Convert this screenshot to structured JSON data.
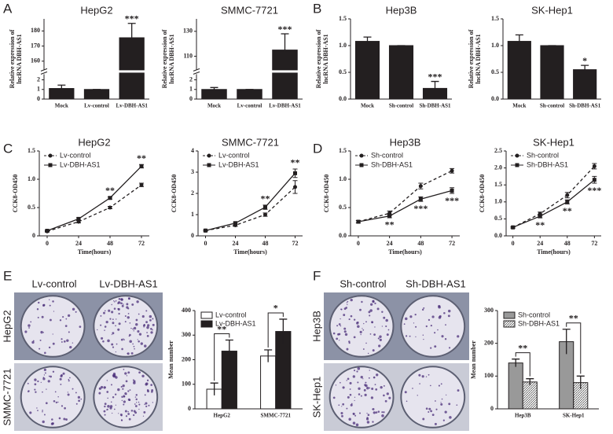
{
  "panel_labels": [
    "A",
    "B",
    "C",
    "D",
    "E",
    "F"
  ],
  "photos": [
    {
      "columns": [
        "Lv-control",
        "Lv-DBH-AS1"
      ],
      "rows": [
        "HepG2",
        "SMMC-7721"
      ]
    },
    {
      "columns": [
        "Sh-control",
        "Sh-DBH-AS1"
      ],
      "rows": [
        "Hep3B",
        "SK-Hep1"
      ]
    }
  ],
  "chart_data": [
    {
      "type": "bar",
      "title": "HepG2",
      "ylabel": [
        "Relative expression of",
        "lncRNA DBH-AS1"
      ],
      "categories": [
        "Mock",
        "Lv-control",
        "Lv-DBH-AS1"
      ],
      "values": [
        1.1,
        1,
        175.5
      ],
      "errors": [
        0.35,
        0,
        9.5
      ],
      "annotations": [
        null,
        null,
        "***"
      ],
      "color": "#231f20",
      "ylim": [
        0,
        188
      ],
      "axis_break": [
        2.5,
        155
      ],
      "yticks": [
        0,
        1,
        2,
        160,
        170,
        180
      ]
    },
    {
      "type": "bar",
      "title": "SMMC-7721",
      "ylabel": [
        "Relative expression of",
        "lncRNA DBH-AS1"
      ],
      "categories": [
        "Mock",
        "Lv-control",
        "Lv-DBH-AS1"
      ],
      "values": [
        1,
        1,
        115
      ],
      "errors": [
        0.2,
        0,
        13
      ],
      "annotations": [
        null,
        null,
        "***"
      ],
      "color": "#231f20",
      "ylim": [
        0,
        140
      ],
      "axis_break": [
        2.5,
        100
      ],
      "yticks": [
        0,
        1,
        2,
        110,
        130
      ]
    },
    {
      "type": "bar",
      "title": "Hep3B",
      "ylabel": [
        "Relative expression of",
        "lncRNA DBH-AS1"
      ],
      "categories": [
        "Mock",
        "Sh-control",
        "Sh-DBH-AS1"
      ],
      "values": [
        1.08,
        1,
        0.2
      ],
      "errors": [
        0.08,
        0,
        0.13
      ],
      "annotations": [
        null,
        null,
        "***"
      ],
      "color": "#231f20",
      "ylim": [
        0,
        1.5
      ],
      "yticks": [
        {
          "value": 0,
          "label": "0.0"
        },
        0.5,
        {
          "value": 1,
          "label": "1.0"
        },
        1.5
      ]
    },
    {
      "type": "bar",
      "title": "SK-Hep1",
      "ylabel": [
        "Relative expression of",
        "lncRNA DBH-AS1"
      ],
      "categories": [
        "Mock",
        "Sh-control",
        "Sh-DBH-AS1"
      ],
      "values": [
        1.08,
        1,
        0.55
      ],
      "errors": [
        0.12,
        0,
        0.08
      ],
      "annotations": [
        null,
        null,
        "*"
      ],
      "color": "#231f20",
      "ylim": [
        0,
        1.5
      ],
      "yticks": [
        {
          "value": 0,
          "label": "0.0"
        },
        0.5,
        {
          "value": 1,
          "label": "1.0"
        },
        1.5
      ]
    },
    {
      "type": "line",
      "title": "HepG2",
      "xlabel": "Time(hours)",
      "ylabel": "CCK8-OD450",
      "x": [
        0,
        24,
        48,
        72
      ],
      "xlim": [
        -6,
        78
      ],
      "xticks": [
        0,
        24,
        48,
        72
      ],
      "ylim": [
        0,
        1.5
      ],
      "yticks": [
        0,
        0.5,
        {
          "value": 1,
          "label": "1.0"
        },
        1.5
      ],
      "annotations": [
        null,
        null,
        "**",
        "**"
      ],
      "annotation_position": "above",
      "series": [
        {
          "name": "Lv-control",
          "color": "#231f20",
          "dash": true,
          "marker": "circle",
          "values": [
            0.08,
            0.25,
            0.5,
            0.9
          ],
          "errors": [
            0.01,
            0.02,
            0.02,
            0.03
          ]
        },
        {
          "name": "Lv-DBH-AS1",
          "color": "#231f20",
          "dash": false,
          "marker": "square",
          "values": [
            0.09,
            0.3,
            0.67,
            1.23
          ],
          "errors": [
            0.01,
            0.02,
            0.02,
            0.03
          ]
        }
      ]
    },
    {
      "type": "line",
      "title": "SMMC-7721",
      "xlabel": "Time(hours)",
      "ylabel": "CCK8-OD450",
      "x": [
        0,
        24,
        48,
        72
      ],
      "xlim": [
        -6,
        78
      ],
      "xticks": [
        0,
        24,
        48,
        72
      ],
      "ylim": [
        0,
        4
      ],
      "yticks": [
        0,
        1,
        2,
        3,
        4
      ],
      "annotations": [
        null,
        null,
        "**",
        "**"
      ],
      "annotation_position": "above",
      "series": [
        {
          "name": "Lv-control",
          "color": "#231f20",
          "dash": true,
          "marker": "circle",
          "values": [
            0.25,
            0.5,
            1,
            2.3
          ],
          "errors": [
            0.03,
            0.05,
            0.08,
            0.3
          ]
        },
        {
          "name": "Lv-DBH-AS1",
          "color": "#231f20",
          "dash": false,
          "marker": "square",
          "values": [
            0.25,
            0.6,
            1.35,
            2.95
          ],
          "errors": [
            0.03,
            0.05,
            0.1,
            0.2
          ]
        }
      ]
    },
    {
      "type": "line",
      "title": "Hep3B",
      "xlabel": "Time(hours)",
      "ylabel": "CCK8-OD450",
      "x": [
        0,
        24,
        48,
        72
      ],
      "xlim": [
        -6,
        78
      ],
      "xticks": [
        0,
        24,
        48,
        72
      ],
      "ylim": [
        0,
        1.5
      ],
      "yticks": [
        {
          "value": 0,
          "label": "0.0"
        },
        0.5,
        {
          "value": 1,
          "label": "1.0"
        },
        1.5
      ],
      "annotations": [
        null,
        "**",
        "***",
        "***"
      ],
      "annotation_position": "below",
      "series": [
        {
          "name": "Sh-control",
          "color": "#231f20",
          "dash": true,
          "marker": "circle",
          "values": [
            0.25,
            0.4,
            0.88,
            1.15
          ],
          "errors": [
            0.02,
            0.04,
            0.05,
            0.04
          ]
        },
        {
          "name": "Sh-DBH-AS1",
          "color": "#231f20",
          "dash": false,
          "marker": "square",
          "values": [
            0.25,
            0.35,
            0.65,
            0.8
          ],
          "errors": [
            0.02,
            0.03,
            0.04,
            0.05
          ]
        }
      ]
    },
    {
      "type": "line",
      "title": "SK-Hep1",
      "xlabel": "Time(hours)",
      "ylabel": "CCK8-OD450",
      "x": [
        0,
        24,
        48,
        72
      ],
      "xlim": [
        -6,
        78
      ],
      "xticks": [
        0,
        24,
        48,
        72
      ],
      "ylim": [
        0,
        2.5
      ],
      "yticks": [
        {
          "value": 0,
          "label": "0.0"
        },
        0.5,
        {
          "value": 1,
          "label": "1.0"
        },
        1.5,
        {
          "value": 2,
          "label": "2.0"
        },
        2.5
      ],
      "annotations": [
        null,
        "**",
        "**",
        "***"
      ],
      "annotation_position": "below",
      "series": [
        {
          "name": "Sh-control",
          "color": "#231f20",
          "dash": true,
          "marker": "circle",
          "values": [
            0.25,
            0.65,
            1.2,
            2.05
          ],
          "errors": [
            0.02,
            0.05,
            0.08,
            0.08
          ]
        },
        {
          "name": "Sh-DBH-AS1",
          "color": "#231f20",
          "dash": false,
          "marker": "square",
          "values": [
            0.25,
            0.58,
            1,
            1.65
          ],
          "errors": [
            0.02,
            0.05,
            0.06,
            0.1
          ]
        }
      ]
    },
    {
      "type": "bar",
      "ylabel": "Mean number",
      "categories": [
        "HepG2",
        "SMMC-7721"
      ],
      "ylim": [
        0,
        400
      ],
      "yticks": [
        0,
        100,
        200,
        300,
        400
      ],
      "annotations": [
        "**",
        "*"
      ],
      "series": [
        {
          "name": "Lv-control",
          "color": "#ffffff",
          "values": [
            80,
            215
          ],
          "errors": [
            25,
            25
          ]
        },
        {
          "name": "Lv-DBH-AS1",
          "color": "#231f20",
          "values": [
            235,
            315
          ],
          "errors": [
            45,
            50
          ]
        }
      ]
    },
    {
      "type": "bar",
      "ylabel": "Mean number",
      "categories": [
        "Hep3B",
        "SK-Hep1"
      ],
      "ylim": [
        0,
        300
      ],
      "yticks": [
        0,
        100,
        200,
        300
      ],
      "annotations": [
        "**",
        "**"
      ],
      "series": [
        {
          "name": "Sh-control",
          "color": "#999999",
          "values": [
            140,
            205
          ],
          "errors": [
            12,
            38
          ]
        },
        {
          "name": "Sh-DBH-AS1",
          "color": "#ffffff",
          "hatch": true,
          "values": [
            82,
            80
          ],
          "errors": [
            10,
            20
          ]
        }
      ]
    }
  ]
}
